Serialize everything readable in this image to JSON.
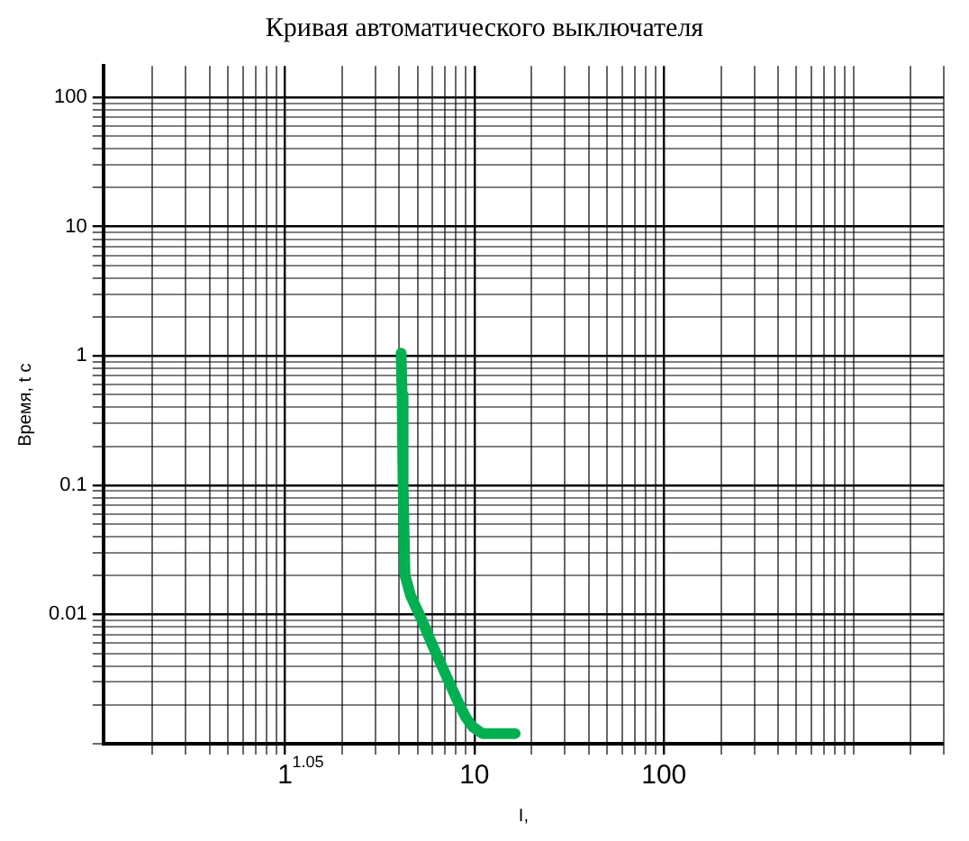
{
  "chart_data": {
    "type": "line",
    "title": "Кривая автоматического выключателя",
    "xlabel": "I,",
    "ylabel": "Время, t с",
    "log": "xy",
    "grid": true,
    "legend": false,
    "marker": "none",
    "line_style": "solid",
    "xlim": [
      0.11,
      3000
    ],
    "xticks": [
      1,
      10,
      100
    ],
    "ylim": [
      0.001,
      175
    ],
    "yticks": [
      0.01,
      0.1,
      1,
      10,
      100
    ],
    "annotations": [
      "1.05"
    ],
    "series": [
      {
        "color": "#00b050",
        "x": [
          4.1,
          4.15,
          4.2,
          4.3,
          4.6,
          5.2,
          6.0,
          7.0,
          8.2,
          9.0,
          9.8,
          11.0,
          13.0,
          16.4
        ],
        "values": [
          1.05,
          0.5,
          0.1,
          0.02,
          0.014,
          0.0095,
          0.0058,
          0.0035,
          0.0021,
          0.0016,
          0.00135,
          0.0012,
          0.0012,
          0.0012
        ]
      }
    ]
  }
}
